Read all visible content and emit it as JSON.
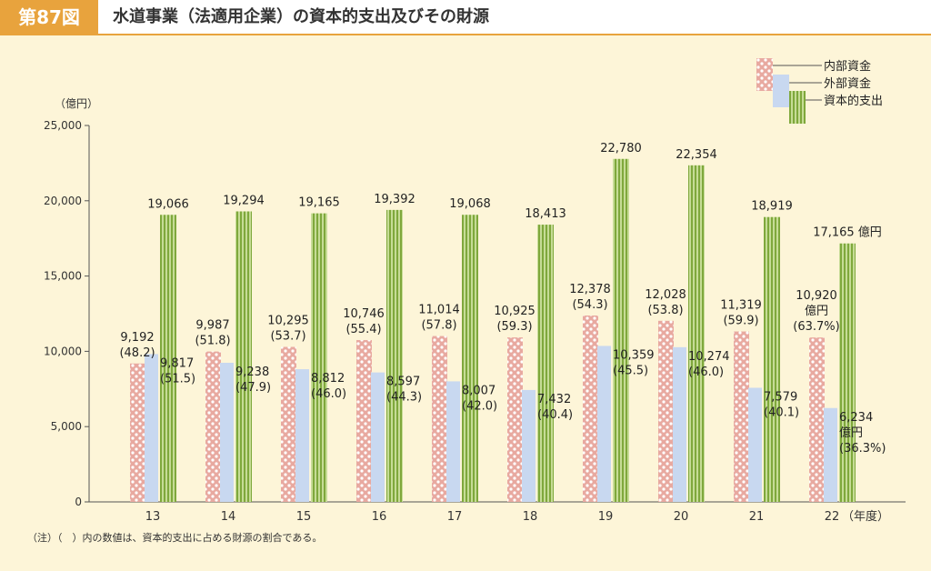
{
  "header": {
    "figure_number": "第87図",
    "title": "水道事業（法適用企業）の資本的支出及びその財源"
  },
  "note": "（注）（　）内の数値は、資本的支出に占める財源の割合である。",
  "chart_data": {
    "type": "bar",
    "title": "水道事業（法適用企業）の資本的支出及びその財源",
    "ylabel": "（億円）",
    "xlabel": "（年度）",
    "ylim": [
      0,
      25000
    ],
    "yticks": [
      "0",
      "5,000",
      "10,000",
      "15,000",
      "20,000",
      "25,000"
    ],
    "grid": false,
    "legend_position": "top-right",
    "categories": [
      "13",
      "14",
      "15",
      "16",
      "17",
      "18",
      "19",
      "20",
      "21",
      "22"
    ],
    "series": [
      {
        "name": "内部資金",
        "color": "#e8a9a0",
        "values": [
          9192,
          9987,
          10295,
          10746,
          11014,
          10925,
          12378,
          12028,
          11319,
          10920
        ],
        "labels": [
          [
            "9,192",
            "(48.2)"
          ],
          [
            "9,987",
            "(51.8)"
          ],
          [
            "10,295",
            "(53.7)"
          ],
          [
            "10,746",
            "(55.4)"
          ],
          [
            "11,014",
            "(57.8)"
          ],
          [
            "10,925",
            "(59.3)"
          ],
          [
            "12,378",
            "(54.3)"
          ],
          [
            "12,028",
            "(53.8)"
          ],
          [
            "11,319",
            "(59.9)"
          ],
          [
            "10,920",
            "億円",
            "(63.7%)"
          ]
        ]
      },
      {
        "name": "外部資金",
        "color": "#c8d8f0",
        "values": [
          9817,
          9238,
          8812,
          8597,
          8007,
          7432,
          10359,
          10274,
          7579,
          6234
        ],
        "labels": [
          [
            "9,817",
            "(51.5)"
          ],
          [
            "9,238",
            "(47.9)"
          ],
          [
            "8,812",
            "(46.0)"
          ],
          [
            "8,597",
            "(44.3)"
          ],
          [
            "8,007",
            "(42.0)"
          ],
          [
            "7,432",
            "(40.4)"
          ],
          [
            "10,359",
            "(45.5)"
          ],
          [
            "10,274",
            "(46.0)"
          ],
          [
            "7,579",
            "(40.1)"
          ],
          [
            "6,234",
            "億円",
            "(36.3%)"
          ]
        ]
      },
      {
        "name": "資本的支出",
        "color": "#a8c464",
        "values": [
          19066,
          19294,
          19165,
          19392,
          19068,
          18413,
          22780,
          22354,
          18919,
          17165
        ],
        "labels": [
          [
            "19,066"
          ],
          [
            "19,294"
          ],
          [
            "19,165"
          ],
          [
            "19,392"
          ],
          [
            "19,068"
          ],
          [
            "18,413"
          ],
          [
            "22,780"
          ],
          [
            "22,354"
          ],
          [
            "18,919"
          ],
          [
            "17,165 億円"
          ]
        ]
      }
    ]
  }
}
